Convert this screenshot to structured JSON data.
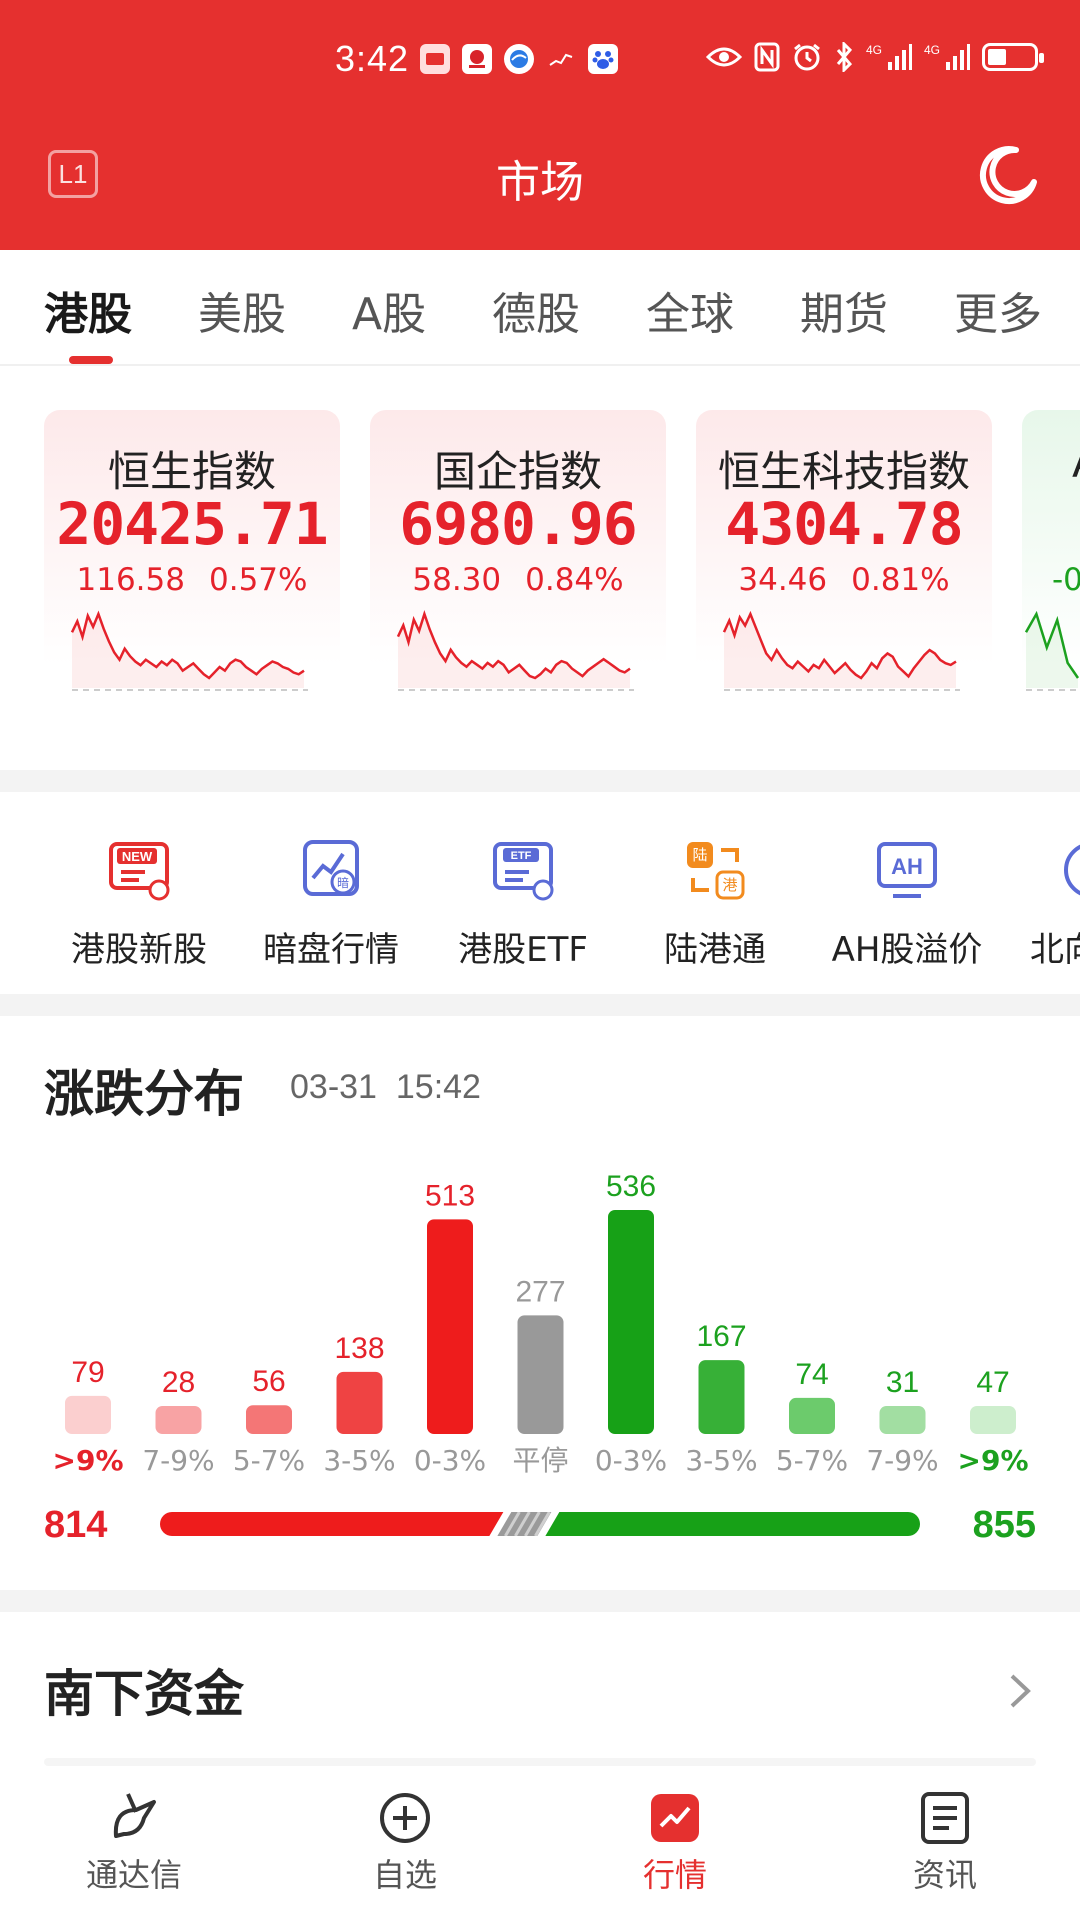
{
  "status_bar": {
    "time": "3:42",
    "notification_icons": [
      "book-app-icon",
      "bank-app-icon",
      "browser-app-icon",
      "chart-app-icon",
      "baidu-app-icon"
    ],
    "system_icons": [
      "eye-icon",
      "nfc-icon",
      "alarm-icon",
      "bluetooth-icon",
      "signal-4g-icon",
      "signal-4g-icon",
      "battery-icon"
    ],
    "network_1": "4G",
    "network_2": "4G",
    "battery_level": 0.4
  },
  "header": {
    "badge": "L1",
    "title": "市场",
    "night_mode_icon": "moon-icon"
  },
  "tabs": [
    {
      "label": "港股",
      "active": true
    },
    {
      "label": "美股",
      "active": false
    },
    {
      "label": "A股",
      "active": false
    },
    {
      "label": "德股",
      "active": false
    },
    {
      "label": "全球",
      "active": false
    },
    {
      "label": "期货",
      "active": false
    },
    {
      "label": "更多",
      "active": false
    }
  ],
  "indices": [
    {
      "name": "恒生指数",
      "value": "20425.71",
      "change": "116.58",
      "pct": "0.57%",
      "color": "#e5222b",
      "spark": [
        60,
        72,
        55,
        78,
        66,
        80,
        64,
        50,
        38,
        30,
        42,
        34,
        28,
        24,
        30,
        26,
        22,
        28,
        24,
        30,
        26,
        18,
        22,
        26,
        20,
        14,
        10,
        16,
        22,
        18,
        26,
        30,
        28,
        22,
        18,
        14,
        20,
        24,
        28,
        26,
        22,
        20,
        16,
        14,
        18
      ]
    },
    {
      "name": "国企指数",
      "value": "6980.96",
      "change": "58.30",
      "pct": "0.84%",
      "color": "#e5222b",
      "spark": [
        58,
        70,
        52,
        76,
        64,
        82,
        66,
        52,
        40,
        32,
        44,
        36,
        30,
        26,
        32,
        28,
        24,
        30,
        26,
        32,
        28,
        20,
        24,
        28,
        22,
        16,
        14,
        18,
        24,
        20,
        28,
        32,
        30,
        24,
        20,
        16,
        22,
        26,
        30,
        34,
        30,
        26,
        22,
        20,
        24
      ]
    },
    {
      "name": "恒生科技指数",
      "value": "4304.78",
      "change": "34.46",
      "pct": "0.81%",
      "color": "#e5222b",
      "spark": [
        62,
        76,
        58,
        80,
        70,
        84,
        68,
        52,
        36,
        28,
        40,
        30,
        22,
        18,
        26,
        20,
        14,
        22,
        18,
        28,
        20,
        12,
        18,
        24,
        16,
        10,
        6,
        14,
        24,
        18,
        30,
        36,
        32,
        20,
        14,
        8,
        18,
        26,
        34,
        40,
        36,
        28,
        24,
        22,
        26
      ]
    },
    {
      "name": "A",
      "value": "",
      "change": "-0",
      "pct": "",
      "color": "#1ca11f",
      "spark": [
        50,
        62,
        40,
        58,
        30,
        20
      ]
    }
  ],
  "shortcuts": [
    {
      "label": "港股新股",
      "icon": "new-stock-icon"
    },
    {
      "label": "暗盘行情",
      "icon": "dark-pool-icon"
    },
    {
      "label": "港股ETF",
      "icon": "etf-icon"
    },
    {
      "label": "陆港通",
      "icon": "connect-icon"
    },
    {
      "label": "AH股溢价",
      "icon": "ah-premium-icon"
    },
    {
      "label": "北向",
      "icon": "northbound-icon"
    }
  ],
  "distribution": {
    "title": "涨跌分布",
    "date": "03-31",
    "time": "15:42",
    "up_total": "814",
    "down_total": "855",
    "ratio": {
      "up": 814,
      "flat": 277,
      "down": 855
    }
  },
  "chart_data": {
    "type": "bar",
    "categories": [
      ">9%",
      "7-9%",
      "5-7%",
      "3-5%",
      "0-3%",
      "平停",
      "0-3%",
      "3-5%",
      "5-7%",
      "7-9%",
      ">9%"
    ],
    "values": [
      79,
      28,
      56,
      138,
      513,
      277,
      536,
      167,
      74,
      31,
      47
    ],
    "colors": [
      "#fbcfcf",
      "#f8a3a4",
      "#f47676",
      "#ef4343",
      "#ee1c1c",
      "#999999",
      "#17a117",
      "#37b037",
      "#6ccb6c",
      "#a2dea2",
      "#cdeecd"
    ],
    "label_colors": [
      "#e5222b",
      "#999999",
      "#999999",
      "#999999",
      "#999999",
      "#999999",
      "#999999",
      "#999999",
      "#999999",
      "#999999",
      "#1ca11f"
    ],
    "value_colors": [
      "#e5222b",
      "#e5222b",
      "#e5222b",
      "#e5222b",
      "#e5222b",
      "#999999",
      "#1ca11f",
      "#1ca11f",
      "#1ca11f",
      "#1ca11f",
      "#1ca11f"
    ],
    "title": "",
    "xlabel": "",
    "ylabel": ""
  },
  "south": {
    "title": "南下资金"
  },
  "bottom_nav": [
    {
      "label": "通达信",
      "icon": "tdx-logo-icon",
      "active": false
    },
    {
      "label": "自选",
      "icon": "add-circle-icon",
      "active": false
    },
    {
      "label": "行情",
      "icon": "market-icon",
      "active": true
    },
    {
      "label": "资讯",
      "icon": "news-icon",
      "active": false
    }
  ]
}
